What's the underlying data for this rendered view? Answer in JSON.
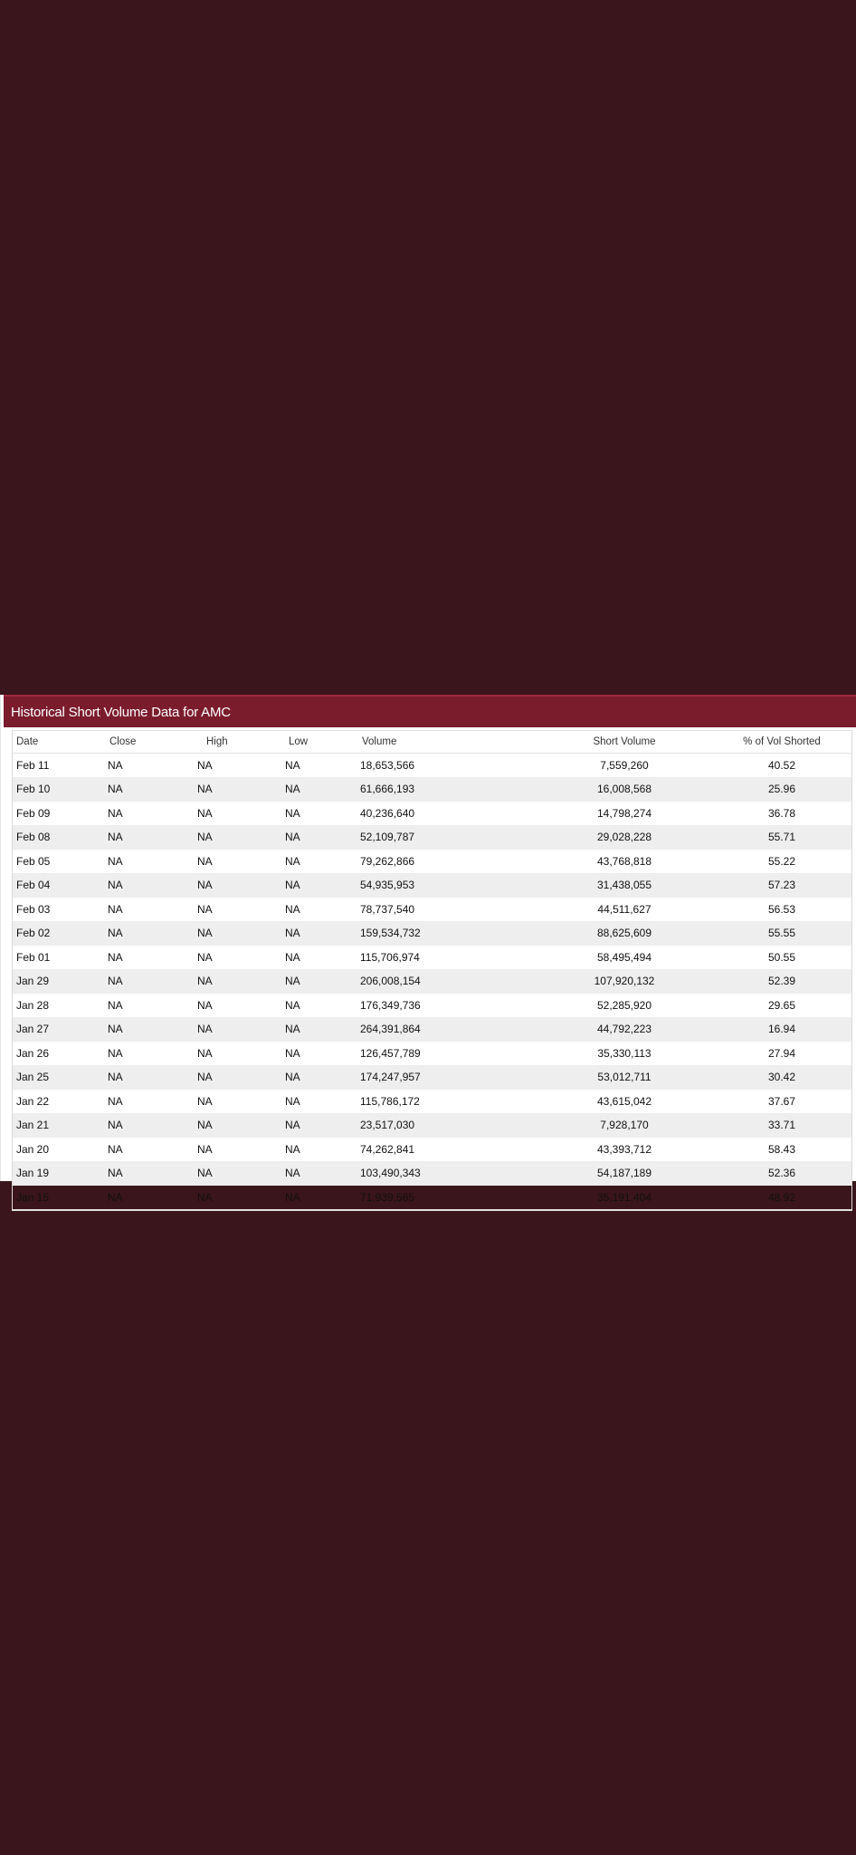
{
  "panel": {
    "title": "Historical Short Volume Data for AMC"
  },
  "table": {
    "columns": [
      "Date",
      "Close",
      "High",
      "Low",
      "Volume",
      "Short Volume",
      "% of Vol Shorted"
    ],
    "rows": [
      {
        "date": "Feb 11",
        "close": "NA",
        "high": "NA",
        "low": "NA",
        "volume": "18,653,566",
        "short_volume": "7,559,260",
        "pct": "40.52"
      },
      {
        "date": "Feb 10",
        "close": "NA",
        "high": "NA",
        "low": "NA",
        "volume": "61,666,193",
        "short_volume": "16,008,568",
        "pct": "25.96"
      },
      {
        "date": "Feb 09",
        "close": "NA",
        "high": "NA",
        "low": "NA",
        "volume": "40,236,640",
        "short_volume": "14,798,274",
        "pct": "36.78"
      },
      {
        "date": "Feb 08",
        "close": "NA",
        "high": "NA",
        "low": "NA",
        "volume": "52,109,787",
        "short_volume": "29,028,228",
        "pct": "55.71"
      },
      {
        "date": "Feb 05",
        "close": "NA",
        "high": "NA",
        "low": "NA",
        "volume": "79,262,866",
        "short_volume": "43,768,818",
        "pct": "55.22"
      },
      {
        "date": "Feb 04",
        "close": "NA",
        "high": "NA",
        "low": "NA",
        "volume": "54,935,953",
        "short_volume": "31,438,055",
        "pct": "57.23"
      },
      {
        "date": "Feb 03",
        "close": "NA",
        "high": "NA",
        "low": "NA",
        "volume": "78,737,540",
        "short_volume": "44,511,627",
        "pct": "56.53"
      },
      {
        "date": "Feb 02",
        "close": "NA",
        "high": "NA",
        "low": "NA",
        "volume": "159,534,732",
        "short_volume": "88,625,609",
        "pct": "55.55"
      },
      {
        "date": "Feb 01",
        "close": "NA",
        "high": "NA",
        "low": "NA",
        "volume": "115,706,974",
        "short_volume": "58,495,494",
        "pct": "50.55"
      },
      {
        "date": "Jan 29",
        "close": "NA",
        "high": "NA",
        "low": "NA",
        "volume": "206,008,154",
        "short_volume": "107,920,132",
        "pct": "52.39"
      },
      {
        "date": "Jan 28",
        "close": "NA",
        "high": "NA",
        "low": "NA",
        "volume": "176,349,736",
        "short_volume": "52,285,920",
        "pct": "29.65"
      },
      {
        "date": "Jan 27",
        "close": "NA",
        "high": "NA",
        "low": "NA",
        "volume": "264,391,864",
        "short_volume": "44,792,223",
        "pct": "16.94"
      },
      {
        "date": "Jan 26",
        "close": "NA",
        "high": "NA",
        "low": "NA",
        "volume": "126,457,789",
        "short_volume": "35,330,113",
        "pct": "27.94"
      },
      {
        "date": "Jan 25",
        "close": "NA",
        "high": "NA",
        "low": "NA",
        "volume": "174,247,957",
        "short_volume": "53,012,711",
        "pct": "30.42"
      },
      {
        "date": "Jan 22",
        "close": "NA",
        "high": "NA",
        "low": "NA",
        "volume": "115,786,172",
        "short_volume": "43,615,042",
        "pct": "37.67"
      },
      {
        "date": "Jan 21",
        "close": "NA",
        "high": "NA",
        "low": "NA",
        "volume": "23,517,030",
        "short_volume": "7,928,170",
        "pct": "33.71"
      },
      {
        "date": "Jan 20",
        "close": "NA",
        "high": "NA",
        "low": "NA",
        "volume": "74,262,841",
        "short_volume": "43,393,712",
        "pct": "58.43"
      },
      {
        "date": "Jan 19",
        "close": "NA",
        "high": "NA",
        "low": "NA",
        "volume": "103,490,343",
        "short_volume": "54,187,189",
        "pct": "52.36"
      },
      {
        "date": "Jan 15",
        "close": "NA",
        "high": "NA",
        "low": "NA",
        "volume": "71,939,565",
        "short_volume": "35,191,404",
        "pct": "48.92"
      }
    ]
  },
  "colors": {
    "background": "#3a151b",
    "header": "#7b1c2d",
    "row_alt": "#eeeeee"
  }
}
